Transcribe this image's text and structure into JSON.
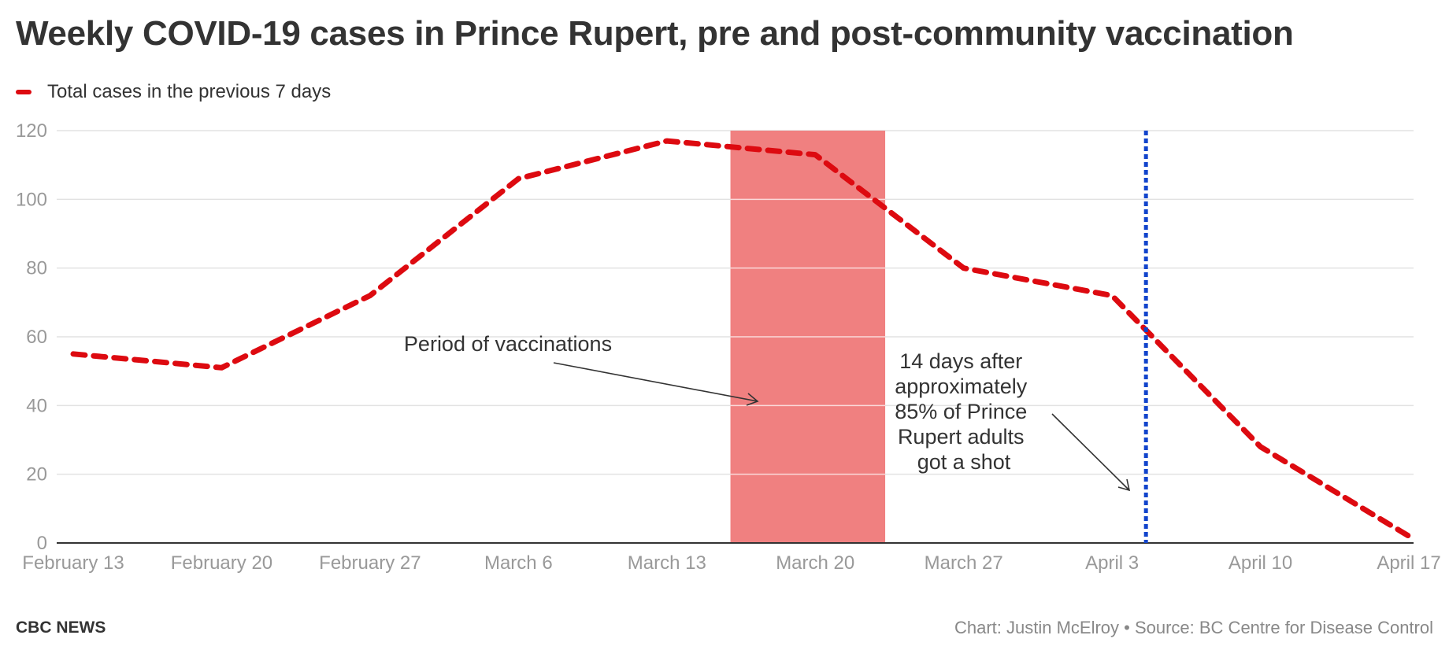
{
  "title": "Weekly COVID-19 cases in Prince Rupert, pre and post-community vaccination",
  "legend": {
    "label": "Total cases in the previous 7 days"
  },
  "colors": {
    "series": "#dd0a10",
    "band": "#f08080",
    "vline": "#1144cc",
    "grid": "#e2e2e2",
    "axis": "#333333"
  },
  "footer": {
    "byline": "CBC NEWS",
    "credit": "Chart: Justin McElroy • Source: BC Centre for Disease Control"
  },
  "chart_data": {
    "type": "line",
    "title": "Weekly COVID-19 cases in Prince Rupert, pre and post-community vaccination",
    "xlabel": "",
    "ylabel": "",
    "x_range_days": [
      0,
      63
    ],
    "ylim": [
      0,
      120
    ],
    "y_ticks": [
      0,
      20,
      40,
      60,
      80,
      100,
      120
    ],
    "x_ticks": [
      {
        "day": 0,
        "label": "February 13"
      },
      {
        "day": 7,
        "label": "February 20"
      },
      {
        "day": 14,
        "label": "February 27"
      },
      {
        "day": 21,
        "label": "March 6"
      },
      {
        "day": 28,
        "label": "March 13"
      },
      {
        "day": 35,
        "label": "March 20"
      },
      {
        "day": 42,
        "label": "March 27"
      },
      {
        "day": 49,
        "label": "April 3"
      },
      {
        "day": 56,
        "label": "April 10"
      },
      {
        "day": 63,
        "label": "April 17"
      }
    ],
    "grid": true,
    "series": [
      {
        "name": "Total cases in the previous 7 days",
        "style": "dashed",
        "points": [
          {
            "day": 0,
            "value": 55
          },
          {
            "day": 7,
            "value": 51
          },
          {
            "day": 14,
            "value": 72
          },
          {
            "day": 21,
            "value": 106
          },
          {
            "day": 28,
            "value": 117
          },
          {
            "day": 35,
            "value": 113
          },
          {
            "day": 42,
            "value": 80
          },
          {
            "day": 49,
            "value": 72
          },
          {
            "day": 56,
            "value": 28
          },
          {
            "day": 63,
            "value": 2
          }
        ]
      }
    ],
    "band": {
      "label": "Period of vaccinations",
      "start_day": 31,
      "end_day": 38.3
    },
    "vline": {
      "day": 50.6,
      "label": "14 days after approximately 85% of Prince Rupert adults got a shot"
    },
    "annotations": {
      "vaccination": "Period of vaccinations",
      "after_lines": [
        "14 days after",
        "approximately",
        "85% of Prince",
        "Rupert adults",
        "got a shot"
      ]
    }
  }
}
